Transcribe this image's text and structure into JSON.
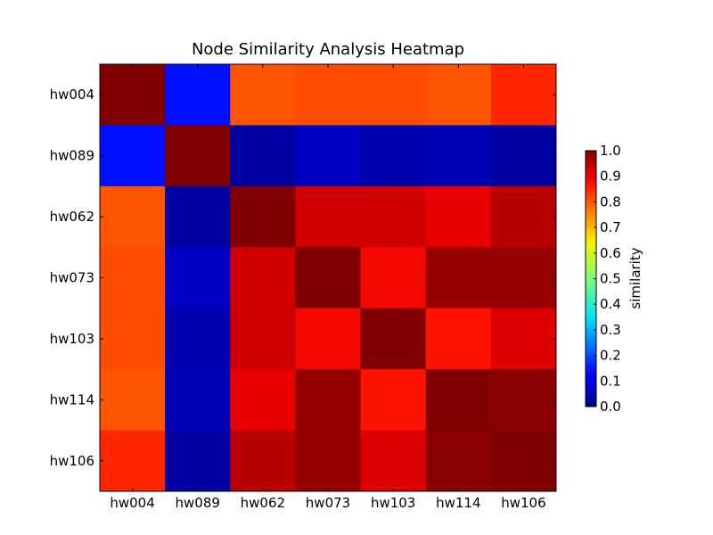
{
  "chart_data": {
    "type": "heatmap",
    "title": "Node Similarity Analysis Heatmap",
    "x_categories": [
      "hw004",
      "hw089",
      "hw062",
      "hw073",
      "hw103",
      "hw114",
      "hw106"
    ],
    "y_categories": [
      "hw004",
      "hw089",
      "hw062",
      "hw073",
      "hw103",
      "hw114",
      "hw106"
    ],
    "values": [
      [
        1.0,
        0.14,
        0.82,
        0.83,
        0.83,
        0.82,
        0.87
      ],
      [
        0.14,
        1.0,
        0.03,
        0.06,
        0.04,
        0.05,
        0.03
      ],
      [
        0.82,
        0.03,
        1.0,
        0.93,
        0.93,
        0.91,
        0.95
      ],
      [
        0.83,
        0.06,
        0.93,
        1.0,
        0.9,
        0.98,
        0.98
      ],
      [
        0.83,
        0.04,
        0.93,
        0.9,
        1.0,
        0.89,
        0.92
      ],
      [
        0.82,
        0.05,
        0.91,
        0.98,
        0.89,
        1.0,
        0.99
      ],
      [
        0.87,
        0.03,
        0.95,
        0.98,
        0.92,
        0.99,
        1.0
      ]
    ],
    "colormap": "jet",
    "colorbar": {
      "label": "similarity",
      "range": [
        0.0,
        1.0
      ],
      "ticks": [
        "0.0",
        "0.1",
        "0.2",
        "0.3",
        "0.4",
        "0.5",
        "0.6",
        "0.7",
        "0.8",
        "0.9",
        "1.0"
      ]
    },
    "grid": false
  }
}
